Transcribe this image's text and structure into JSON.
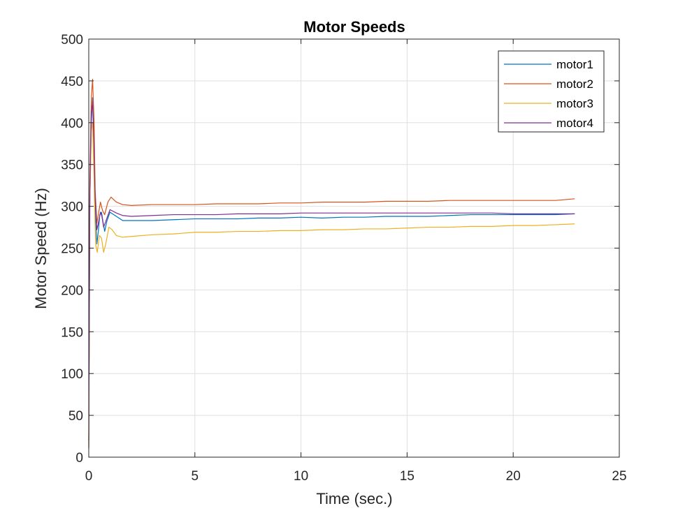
{
  "chart_data": {
    "type": "line",
    "title": "Motor Speeds",
    "xlabel": "Time (sec.)",
    "ylabel": "Motor Speed (Hz)",
    "xlim": [
      0,
      25
    ],
    "ylim": [
      0,
      500
    ],
    "xticks": [
      0,
      5,
      10,
      15,
      20,
      25
    ],
    "yticks": [
      0,
      50,
      100,
      150,
      200,
      250,
      300,
      350,
      400,
      450,
      500
    ],
    "grid": true,
    "legend_position": "top-right",
    "series": [
      {
        "name": "motor1",
        "color": "#0072BD",
        "points": [
          [
            0,
            10
          ],
          [
            0.05,
            300
          ],
          [
            0.12,
            400
          ],
          [
            0.18,
            430
          ],
          [
            0.25,
            380
          ],
          [
            0.3,
            300
          ],
          [
            0.38,
            255
          ],
          [
            0.45,
            270
          ],
          [
            0.52,
            290
          ],
          [
            0.6,
            293
          ],
          [
            0.68,
            280
          ],
          [
            0.75,
            270
          ],
          [
            0.85,
            282
          ],
          [
            1.0,
            293
          ],
          [
            1.3,
            288
          ],
          [
            1.6,
            283
          ],
          [
            2,
            283
          ],
          [
            3,
            283
          ],
          [
            4,
            284
          ],
          [
            5,
            285
          ],
          [
            6,
            285
          ],
          [
            7,
            285
          ],
          [
            8,
            286
          ],
          [
            9,
            286
          ],
          [
            10,
            287
          ],
          [
            11,
            286
          ],
          [
            12,
            287
          ],
          [
            13,
            287
          ],
          [
            14,
            288
          ],
          [
            15,
            288
          ],
          [
            16,
            288
          ],
          [
            17,
            289
          ],
          [
            18,
            290
          ],
          [
            19,
            290
          ],
          [
            20,
            290
          ],
          [
            21,
            290
          ],
          [
            22,
            290
          ],
          [
            22.9,
            291
          ]
        ]
      },
      {
        "name": "motor2",
        "color": "#D95319",
        "points": [
          [
            0,
            12
          ],
          [
            0.05,
            330
          ],
          [
            0.12,
            430
          ],
          [
            0.18,
            452
          ],
          [
            0.25,
            400
          ],
          [
            0.3,
            320
          ],
          [
            0.38,
            280
          ],
          [
            0.45,
            290
          ],
          [
            0.55,
            305
          ],
          [
            0.65,
            295
          ],
          [
            0.75,
            290
          ],
          [
            0.9,
            305
          ],
          [
            1.05,
            311
          ],
          [
            1.3,
            305
          ],
          [
            1.6,
            302
          ],
          [
            2,
            301
          ],
          [
            3,
            302
          ],
          [
            4,
            302
          ],
          [
            5,
            302
          ],
          [
            6,
            303
          ],
          [
            7,
            303
          ],
          [
            8,
            303
          ],
          [
            9,
            304
          ],
          [
            10,
            304
          ],
          [
            11,
            305
          ],
          [
            12,
            305
          ],
          [
            13,
            305
          ],
          [
            14,
            306
          ],
          [
            15,
            306
          ],
          [
            16,
            306
          ],
          [
            17,
            307
          ],
          [
            18,
            307
          ],
          [
            19,
            307
          ],
          [
            20,
            307
          ],
          [
            21,
            307
          ],
          [
            22,
            307
          ],
          [
            22.9,
            309
          ]
        ]
      },
      {
        "name": "motor3",
        "color": "#EDB120",
        "points": [
          [
            0,
            15
          ],
          [
            0.05,
            300
          ],
          [
            0.12,
            390
          ],
          [
            0.18,
            400
          ],
          [
            0.25,
            330
          ],
          [
            0.32,
            255
          ],
          [
            0.4,
            245
          ],
          [
            0.5,
            265
          ],
          [
            0.6,
            262
          ],
          [
            0.7,
            245
          ],
          [
            0.8,
            255
          ],
          [
            0.95,
            275
          ],
          [
            1.1,
            272
          ],
          [
            1.3,
            265
          ],
          [
            1.6,
            263
          ],
          [
            2,
            264
          ],
          [
            3,
            266
          ],
          [
            4,
            267
          ],
          [
            5,
            269
          ],
          [
            6,
            269
          ],
          [
            7,
            270
          ],
          [
            8,
            270
          ],
          [
            9,
            271
          ],
          [
            10,
            271
          ],
          [
            11,
            272
          ],
          [
            12,
            272
          ],
          [
            13,
            273
          ],
          [
            14,
            273
          ],
          [
            15,
            274
          ],
          [
            16,
            275
          ],
          [
            17,
            275
          ],
          [
            18,
            276
          ],
          [
            19,
            276
          ],
          [
            20,
            277
          ],
          [
            21,
            277
          ],
          [
            22,
            278
          ],
          [
            22.9,
            279
          ]
        ]
      },
      {
        "name": "motor4",
        "color": "#7E2F8E",
        "points": [
          [
            0,
            20
          ],
          [
            0.05,
            320
          ],
          [
            0.12,
            410
          ],
          [
            0.18,
            425
          ],
          [
            0.25,
            370
          ],
          [
            0.3,
            310
          ],
          [
            0.38,
            272
          ],
          [
            0.45,
            280
          ],
          [
            0.55,
            293
          ],
          [
            0.62,
            288
          ],
          [
            0.7,
            275
          ],
          [
            0.8,
            282
          ],
          [
            1.0,
            296
          ],
          [
            1.3,
            292
          ],
          [
            1.6,
            289
          ],
          [
            2,
            288
          ],
          [
            3,
            289
          ],
          [
            4,
            290
          ],
          [
            5,
            290
          ],
          [
            6,
            290
          ],
          [
            7,
            291
          ],
          [
            8,
            291
          ],
          [
            9,
            291
          ],
          [
            10,
            292
          ],
          [
            11,
            292
          ],
          [
            12,
            292
          ],
          [
            13,
            292
          ],
          [
            14,
            292
          ],
          [
            15,
            292
          ],
          [
            16,
            292
          ],
          [
            17,
            292
          ],
          [
            18,
            292
          ],
          [
            19,
            292
          ],
          [
            20,
            291
          ],
          [
            21,
            291
          ],
          [
            22,
            291
          ],
          [
            22.9,
            291
          ]
        ]
      }
    ]
  }
}
